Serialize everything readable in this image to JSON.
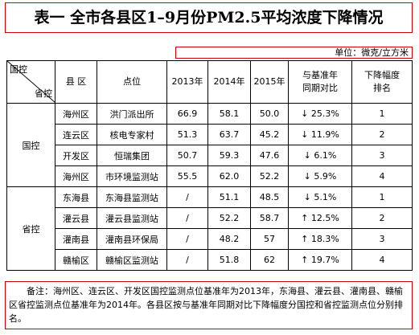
{
  "title": "表一  全市各县区1–9月份PM2.5平均浓度下降情况",
  "unit": "单位：微克/立方米",
  "table": {
    "corner_top": "国控",
    "corner_bottom": "省控",
    "headers": [
      [
        "县 区"
      ],
      [
        "点位"
      ],
      [
        "2013年"
      ],
      [
        "2014年"
      ],
      [
        "2015年"
      ],
      [
        "与基准年",
        "同期对比"
      ],
      [
        "下降幅度",
        "排名"
      ]
    ],
    "groups": [
      {
        "name": "国控",
        "rows": [
          [
            "海州区",
            "洪门派出所",
            "66.9",
            "58.1",
            "50.0",
            "↓ 25.3%",
            "1"
          ],
          [
            "连云区",
            "核电专家村",
            "51.3",
            "63.7",
            "45.2",
            "↓ 11.9%",
            "2"
          ],
          [
            "开发区",
            "恒瑞集团",
            "50.7",
            "59.3",
            "47.6",
            "↓ 6.1%",
            "3"
          ],
          [
            "海州区",
            "市环境监测站",
            "55.5",
            "62.0",
            "52.2",
            "↓ 5.9%",
            "4"
          ]
        ]
      },
      {
        "name": "省控",
        "rows": [
          [
            "东海县",
            "东海县监测站",
            "/",
            "51.1",
            "48.5",
            "↓ 5.1%",
            "1"
          ],
          [
            "灌云县",
            "灌云县监测站",
            "/",
            "52.2",
            "58.7",
            "↑ 12.5%",
            "2"
          ],
          [
            "灌南县",
            "灌南县环保局",
            "/",
            "48.2",
            "57",
            "↑ 18.3%",
            "3"
          ],
          [
            "赣榆区",
            "赣榆区监测站",
            "/",
            "51.8",
            "62",
            "↑ 19.7%",
            "4"
          ]
        ]
      }
    ]
  },
  "note": "备注：海州区、连云区、开发区国控监测点位基准年为2013年，东海县、灌云县、灌南县、赣榆区省控监测点位基准年为2014年。各县区按与基准年同期对比下降幅度分国控和省控监测点位分别排名。"
}
